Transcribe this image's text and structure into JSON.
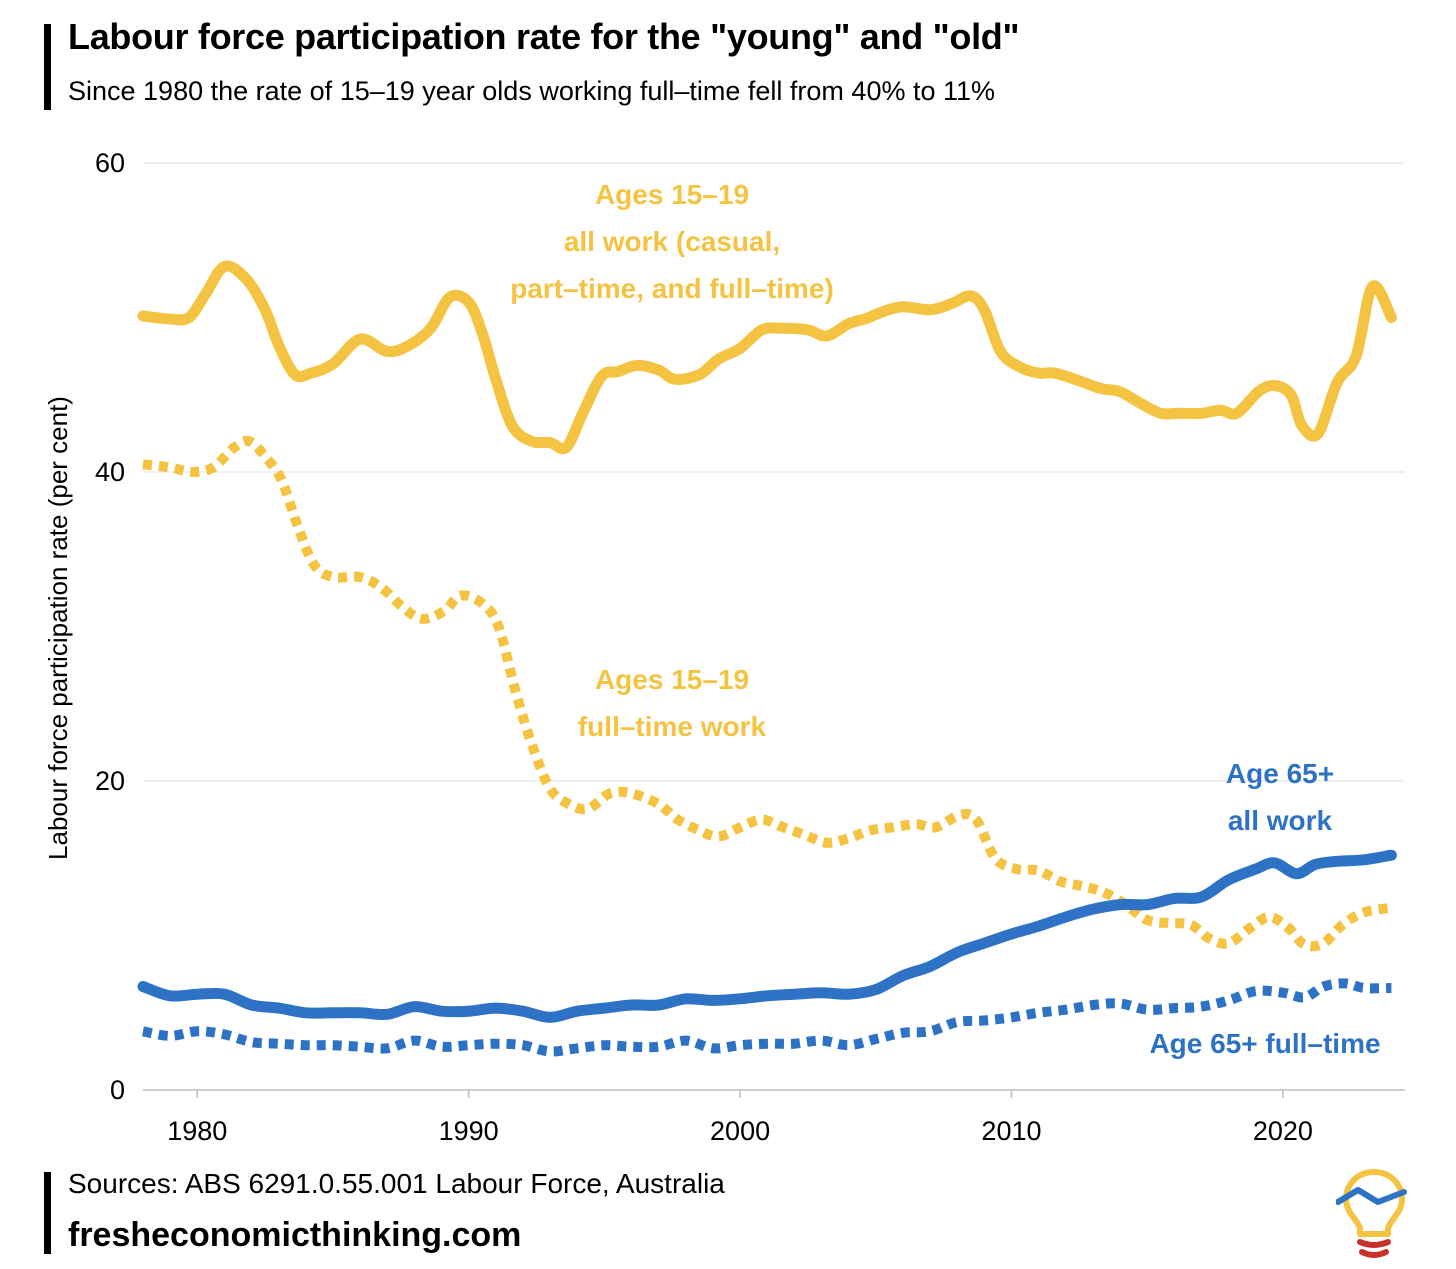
{
  "header": {
    "title": "Labour force participation rate for the \"young\" and \"old\"",
    "subtitle": "Since 1980 the rate of 15–19 year olds working full–time fell from 40% to 11%"
  },
  "footer": {
    "source": "Sources: ABS 6291.0.55.001 Labour Force, Australia",
    "site": "fresheconomicthinking.com"
  },
  "colors": {
    "young": "#F5C342",
    "old": "#2E72C6",
    "grid": "#e2e2e2",
    "logo_bulb": "#F5C342",
    "logo_base": "#C9302C"
  },
  "chart_data": {
    "type": "line",
    "title": "Labour force participation rate for the \"young\" and \"old\"",
    "xlabel": "",
    "ylabel": "Labour force participation rate (per cent)",
    "xlim": [
      1978,
      2024.5
    ],
    "ylim": [
      0,
      60
    ],
    "xticks": [
      1980,
      1990,
      2000,
      2010,
      2020
    ],
    "yticks": [
      0,
      20,
      40,
      60
    ],
    "grid": true,
    "legend": "inline labels",
    "series": [
      {
        "name": "Ages 15–19 all work (casual, part–time, and full–time)",
        "label_lines": [
          "Ages 15–19",
          "all work (casual,",
          "part–time, and full–time)"
        ],
        "color_key": "young",
        "style": "solid",
        "x": [
          1978,
          1979,
          1979.7,
          1980.3,
          1981,
          1981.8,
          1982.5,
          1983,
          1983.6,
          1984.2,
          1985,
          1986,
          1987,
          1987.8,
          1988.6,
          1989.3,
          1990,
          1990.5,
          1991,
          1991.6,
          1992.3,
          1993,
          1993.6,
          1994.2,
          1994.9,
          1995.5,
          1996.2,
          1997,
          1997.6,
          1998.5,
          1999.2,
          2000,
          2000.8,
          2001.5,
          2002.5,
          2003.2,
          2004,
          2004.6,
          2005.3,
          2006,
          2007,
          2007.8,
          2008.5,
          2009,
          2009.6,
          2010.3,
          2011,
          2011.6,
          2012.5,
          2013.3,
          2014,
          2014.8,
          2015.5,
          2016.2,
          2017,
          2017.7,
          2018.3,
          2019.1,
          2019.7,
          2020.3,
          2020.7,
          2021.3,
          2022,
          2022.7,
          2023.3,
          2024
        ],
        "values": [
          50.1,
          49.9,
          50.0,
          51.5,
          53.3,
          52.5,
          50.5,
          48.2,
          46.3,
          46.4,
          47.0,
          48.6,
          47.8,
          48.2,
          49.3,
          51.3,
          51.0,
          49.0,
          46.0,
          43.0,
          42.0,
          41.9,
          41.6,
          43.8,
          46.2,
          46.5,
          46.9,
          46.6,
          46.0,
          46.3,
          47.3,
          48.0,
          49.2,
          49.3,
          49.2,
          48.8,
          49.6,
          49.9,
          50.4,
          50.7,
          50.5,
          50.9,
          51.4,
          50.5,
          47.8,
          46.8,
          46.4,
          46.4,
          45.9,
          45.4,
          45.2,
          44.4,
          43.8,
          43.8,
          43.8,
          44.0,
          43.8,
          45.2,
          45.6,
          45.0,
          43.0,
          42.5,
          45.8,
          47.5,
          52.0,
          50.0
        ]
      },
      {
        "name": "Ages 15–19 full–time work",
        "label_lines": [
          "Ages 15–19",
          "full–time work"
        ],
        "color_key": "young",
        "style": "dotted",
        "x": [
          1978,
          1979,
          1979.8,
          1980.6,
          1981.3,
          1981.9,
          1982.5,
          1983.1,
          1983.7,
          1984.3,
          1985,
          1986,
          1986.8,
          1987.6,
          1988.3,
          1989.1,
          1989.7,
          1990.5,
          1991.1,
          1991.7,
          1992.3,
          1993,
          1993.7,
          1994.4,
          1995.2,
          1996,
          1997,
          1997.7,
          1998.5,
          1999.2,
          2000,
          2000.8,
          2001.6,
          2002.4,
          2003.2,
          2004,
          2004.8,
          2005.6,
          2006.5,
          2007.2,
          2008.1,
          2008.7,
          2009.4,
          2010.2,
          2011,
          2011.8,
          2012.6,
          2013.4,
          2014.2,
          2015,
          2015.8,
          2016.6,
          2017.3,
          2018,
          2018.8,
          2019.5,
          2020.2,
          2020.8,
          2021.5,
          2022.2,
          2023,
          2024
        ],
        "values": [
          40.5,
          40.3,
          40.0,
          40.3,
          41.5,
          42.0,
          41.0,
          39.5,
          36.5,
          34.0,
          33.2,
          33.2,
          32.5,
          31.2,
          30.5,
          31.0,
          32.0,
          31.5,
          30.0,
          26.0,
          22.5,
          19.5,
          18.5,
          18.2,
          19.2,
          19.2,
          18.5,
          17.5,
          16.8,
          16.4,
          17.0,
          17.5,
          17.0,
          16.5,
          16.0,
          16.3,
          16.8,
          17.0,
          17.2,
          17.0,
          17.8,
          17.5,
          15.0,
          14.3,
          14.2,
          13.5,
          13.2,
          12.8,
          12.0,
          11.0,
          10.8,
          10.7,
          9.8,
          9.5,
          10.5,
          11.2,
          10.5,
          9.4,
          9.5,
          10.7,
          11.5,
          11.8
        ]
      },
      {
        "name": "Age 65+ all work",
        "label_lines": [
          "Age 65+",
          "all work"
        ],
        "color_key": "old",
        "style": "solid",
        "x": [
          1978,
          1979,
          1980,
          1981,
          1982,
          1983,
          1984,
          1985,
          1986,
          1987,
          1988,
          1989,
          1990,
          1991,
          1992,
          1993,
          1994,
          1995,
          1996,
          1997,
          1998,
          1999,
          2000,
          2001,
          2002,
          2003,
          2004,
          2005,
          2006,
          2007,
          2008,
          2009,
          2010,
          2011,
          2012,
          2013,
          2014,
          2015,
          2016,
          2017,
          2018,
          2019,
          2019.7,
          2020.5,
          2021.2,
          2022,
          2023,
          2024
        ],
        "values": [
          6.7,
          6.1,
          6.2,
          6.2,
          5.5,
          5.3,
          5.0,
          5.0,
          5.0,
          4.9,
          5.4,
          5.1,
          5.1,
          5.3,
          5.1,
          4.7,
          5.1,
          5.3,
          5.5,
          5.5,
          5.9,
          5.8,
          5.9,
          6.1,
          6.2,
          6.3,
          6.2,
          6.5,
          7.4,
          8.0,
          8.9,
          9.5,
          10.1,
          10.6,
          11.2,
          11.7,
          12.0,
          12.0,
          12.4,
          12.5,
          13.6,
          14.3,
          14.7,
          14.0,
          14.6,
          14.8,
          14.9,
          15.2
        ]
      },
      {
        "name": "Age 65+ full–time",
        "label_lines": [
          "Age 65+ full–time"
        ],
        "color_key": "old",
        "style": "dotted",
        "x": [
          1978,
          1979,
          1980,
          1981,
          1982,
          1983,
          1984,
          1985,
          1986,
          1987,
          1988,
          1989,
          1990,
          1991,
          1992,
          1993,
          1994,
          1995,
          1996,
          1997,
          1998,
          1999,
          2000,
          2001,
          2002,
          2003,
          2004,
          2005,
          2006,
          2007,
          2008,
          2009,
          2010,
          2011,
          2012,
          2013,
          2014,
          2015,
          2016,
          2017,
          2018,
          2019,
          2020,
          2020.8,
          2021.5,
          2022.3,
          2023,
          2024
        ],
        "values": [
          3.8,
          3.5,
          3.8,
          3.6,
          3.1,
          3.0,
          2.9,
          2.9,
          2.8,
          2.7,
          3.2,
          2.8,
          2.9,
          3.0,
          2.9,
          2.5,
          2.7,
          2.9,
          2.8,
          2.8,
          3.2,
          2.7,
          2.9,
          3.0,
          3.0,
          3.2,
          2.9,
          3.3,
          3.7,
          3.8,
          4.4,
          4.5,
          4.7,
          5.0,
          5.2,
          5.5,
          5.6,
          5.2,
          5.3,
          5.4,
          5.8,
          6.4,
          6.3,
          6.0,
          6.7,
          6.9,
          6.6,
          6.6
        ]
      }
    ]
  }
}
